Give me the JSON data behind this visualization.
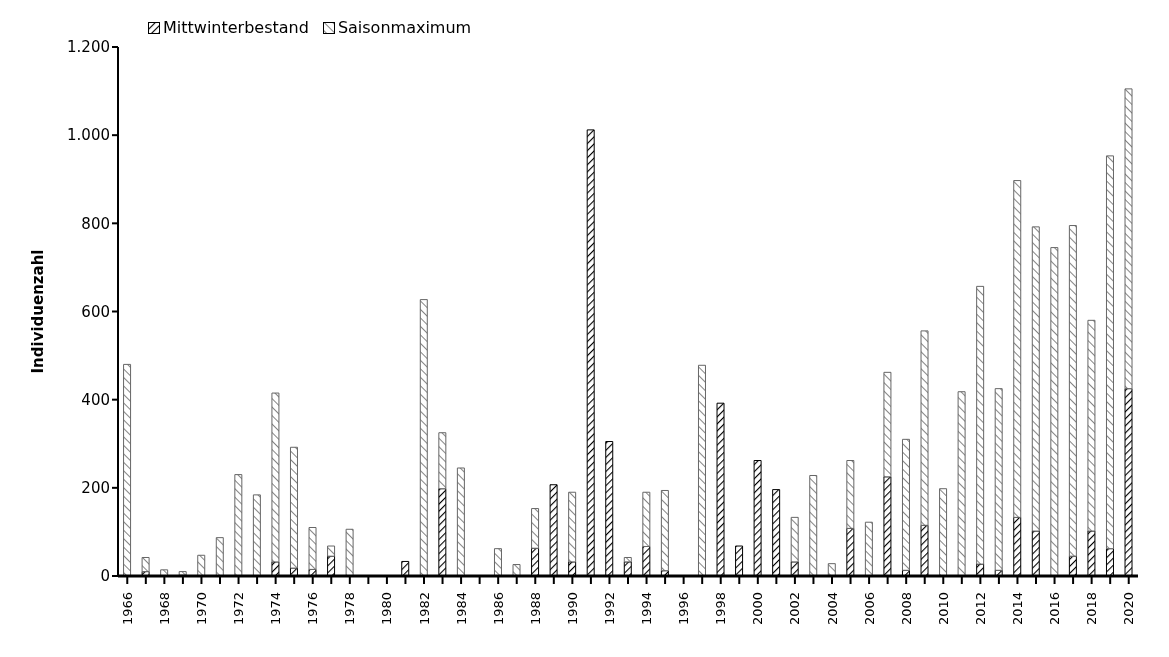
{
  "chart_data": {
    "type": "bar",
    "stacked": true,
    "ylabel": "Individuenzahl",
    "categories": [
      "1966",
      null,
      "1968",
      null,
      "1970",
      null,
      "1972",
      null,
      "1974",
      null,
      "1976",
      null,
      "1978",
      null,
      "1980",
      null,
      "1982",
      null,
      "1984",
      null,
      "1986",
      null,
      "1988",
      null,
      "1990",
      null,
      "1992",
      null,
      "1994",
      null,
      "1996",
      null,
      "1998",
      null,
      "2000",
      null,
      "2002",
      null,
      "2004",
      null,
      "2006",
      null,
      "2008",
      null,
      "2010",
      null,
      "2012",
      null,
      "2014",
      null,
      "2016",
      null,
      "2018",
      null,
      "2020"
    ],
    "series": [
      {
        "name": "Mittwinterbestand",
        "color": "#000000",
        "values": [
          null,
          10,
          null,
          2,
          0,
          0,
          0,
          0,
          32,
          18,
          15,
          45,
          0,
          null,
          null,
          33,
          0,
          198,
          0,
          null,
          0,
          0,
          63,
          207,
          32,
          1012,
          305,
          32,
          67,
          12,
          null,
          0,
          392,
          68,
          262,
          196,
          32,
          0,
          0,
          108,
          null,
          225,
          13,
          115,
          0,
          0,
          27,
          13,
          133,
          102,
          0,
          45,
          102,
          62,
          425
        ]
      },
      {
        "name": "Saisonmaximum",
        "color": "#666666",
        "values": [
          480,
          32,
          14,
          8,
          47,
          87,
          230,
          184,
          383,
          274,
          95,
          23,
          106,
          null,
          null,
          0,
          627,
          127,
          245,
          null,
          62,
          26,
          90,
          0,
          158,
          0,
          0,
          10,
          123,
          182,
          null,
          478,
          0,
          0,
          0,
          0,
          101,
          228,
          28,
          154,
          122,
          237,
          297,
          441,
          198,
          418,
          630,
          412,
          764,
          690,
          745,
          750,
          478,
          891,
          680
        ]
      }
    ],
    "ylim": [
      0,
      1200
    ],
    "yticks": [
      0,
      200,
      400,
      600,
      800,
      {
        "value": 1000,
        "label": "1.000"
      },
      {
        "value": 1200,
        "label": "1.200"
      }
    ],
    "grid": false,
    "legend": "top left"
  }
}
